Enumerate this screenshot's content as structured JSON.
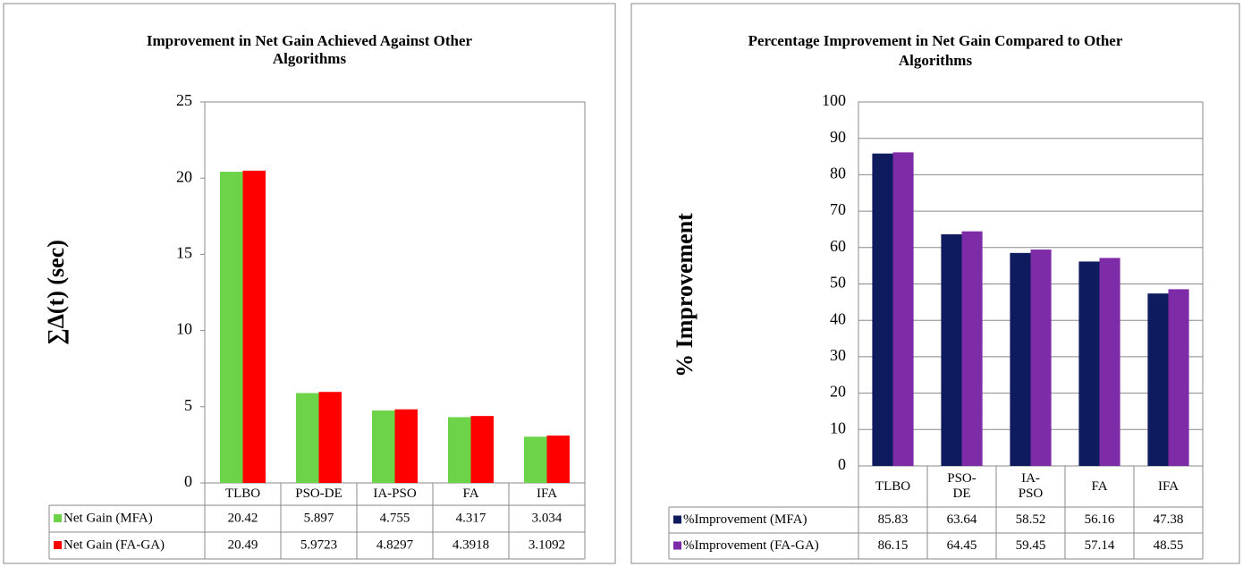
{
  "chart_data": [
    {
      "type": "bar",
      "title": "Improvement in Net Gain Achieved Against Other Algorithms",
      "ylabel": "∑Δ(t) (sec)",
      "categories": [
        "TLBO",
        "PSO-DE",
        "IA-PSO",
        "FA",
        "IFA"
      ],
      "series": [
        {
          "name": "Net Gain (MFA)",
          "color": "#6dd44a",
          "values": [
            20.42,
            5.897,
            4.755,
            4.317,
            3.034
          ]
        },
        {
          "name": "Net Gain (FA-GA)",
          "color": "#ff0000",
          "values": [
            20.49,
            5.9723,
            4.8297,
            4.3918,
            3.1092
          ]
        }
      ],
      "ylim": [
        0,
        25
      ],
      "yticks": [
        0,
        5,
        10,
        15,
        20,
        25
      ],
      "grid": false
    },
    {
      "type": "bar",
      "title": "Percentage Improvement in Net Gain Compared to Other Algorithms",
      "ylabel": "% Improvement",
      "categories": [
        "TLBO",
        "PSO-DE",
        "IA-PSO",
        "FA",
        "IFA"
      ],
      "series": [
        {
          "name": "%Improvement (MFA)",
          "color": "#0e1b5e",
          "values": [
            85.83,
            63.64,
            58.52,
            56.16,
            47.38
          ]
        },
        {
          "name": "%Improvement (FA-GA)",
          "color": "#7e2ba8",
          "values": [
            86.15,
            64.45,
            59.45,
            57.14,
            48.55
          ]
        }
      ],
      "ylim": [
        0,
        100
      ],
      "yticks": [
        0,
        10,
        20,
        30,
        40,
        50,
        60,
        70,
        80,
        90,
        100
      ],
      "grid": true
    }
  ]
}
